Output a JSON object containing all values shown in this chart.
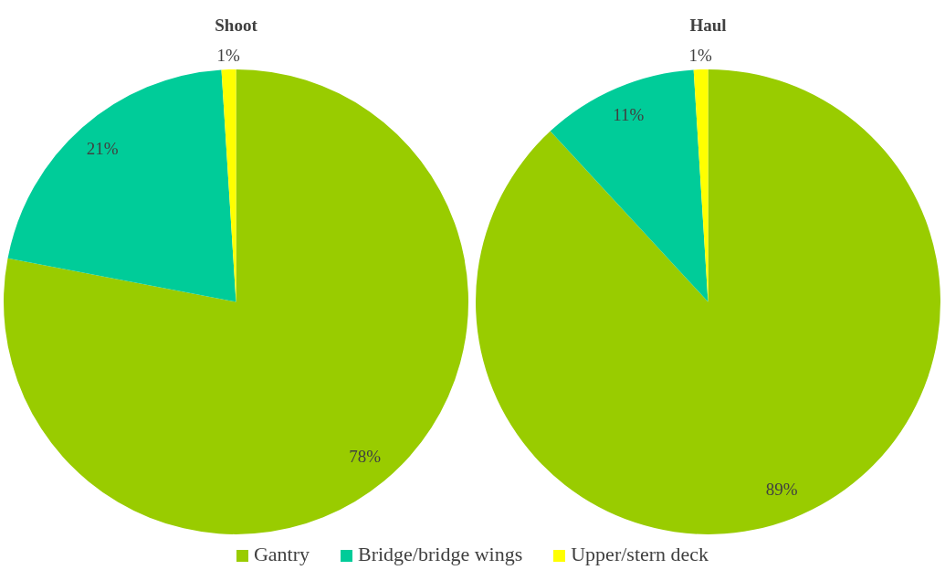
{
  "chart_data": [
    {
      "type": "pie",
      "title": "Shoot",
      "categories": [
        "Gantry",
        "Bridge/bridge wings",
        "Upper/stern deck"
      ],
      "values": [
        78,
        21,
        1
      ],
      "colors": [
        "#99cc00",
        "#00cc99",
        "#ffff00"
      ],
      "value_labels": [
        "78%",
        "21%",
        "1%"
      ],
      "legend": "bottom"
    },
    {
      "type": "pie",
      "title": "Haul",
      "categories": [
        null,
        null,
        null
      ],
      "values": [
        89,
        11,
        1
      ],
      "colors": [
        "#99cc00",
        "#00cc99",
        "#ffff00"
      ],
      "value_labels": [
        "89%",
        "11%",
        "1%"
      ]
    }
  ]
}
